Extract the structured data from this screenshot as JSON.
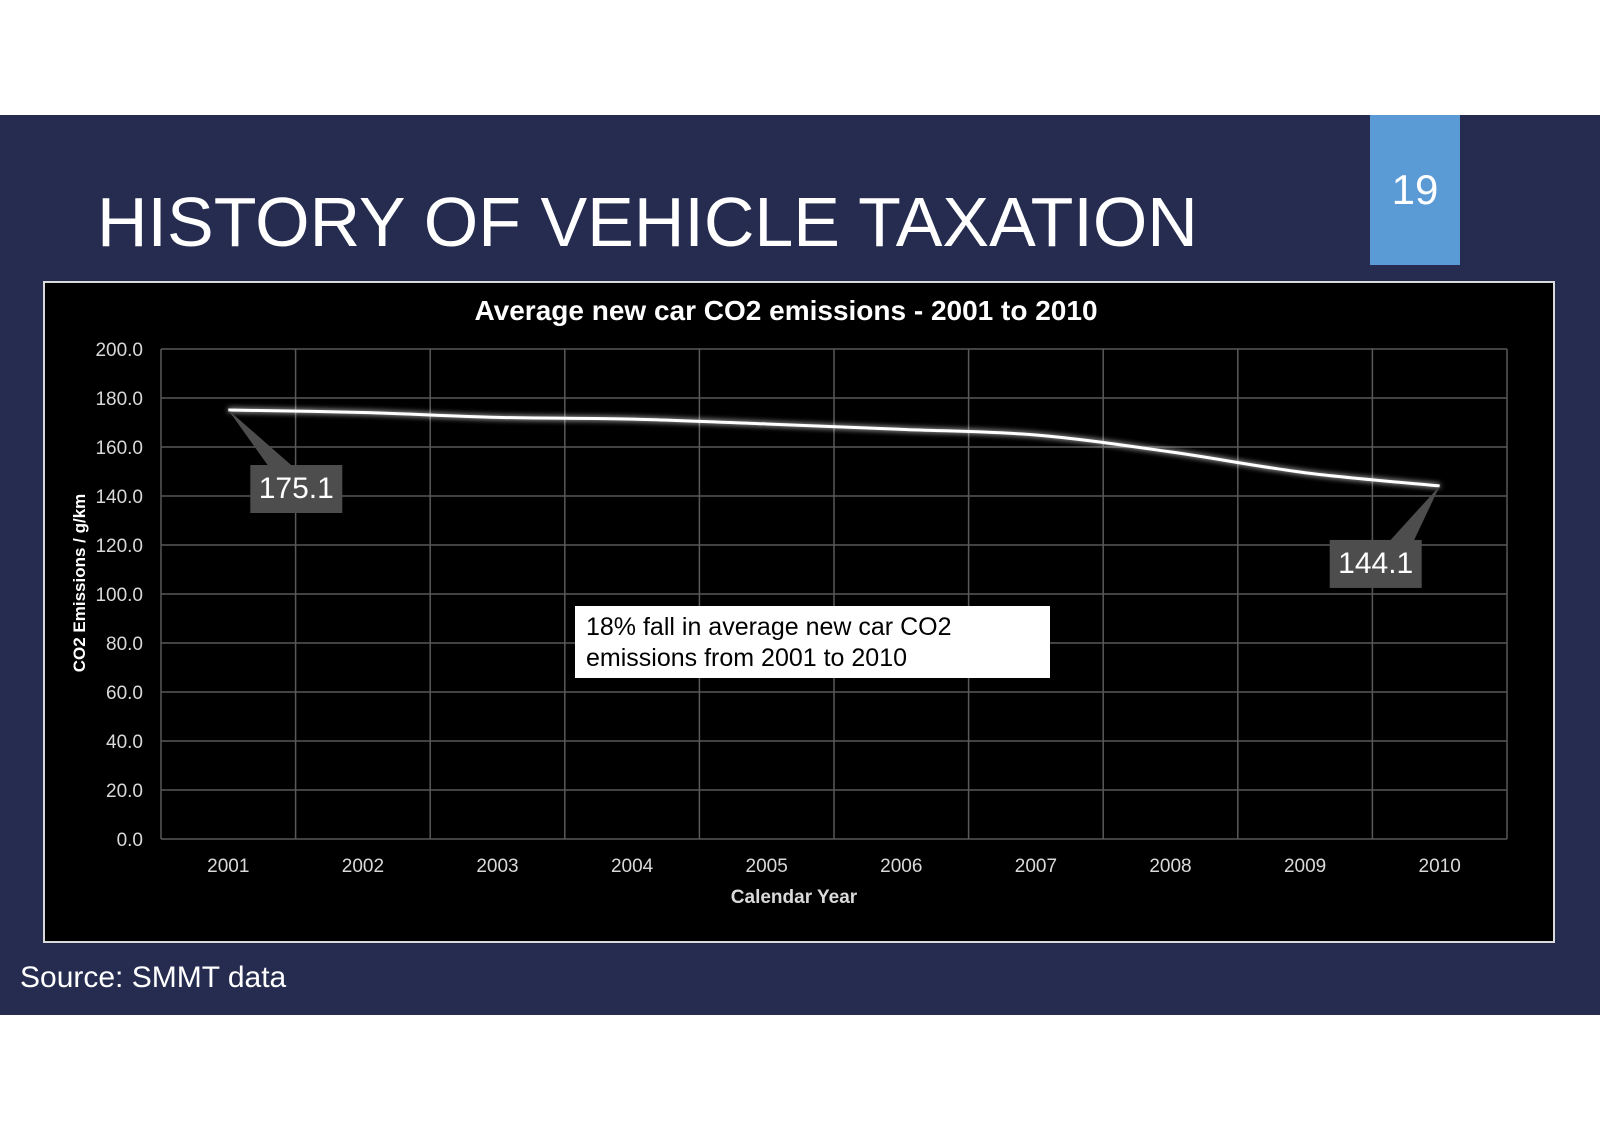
{
  "slide": {
    "title": "HISTORY OF VEHICLE TAXATION",
    "page_number": "19",
    "source": "Source: SMMT data"
  },
  "colors": {
    "background": "#252c4f",
    "accent": "#5b9bd5",
    "chart_background": "#000000",
    "line": "#ffffff",
    "grid": "#595959"
  },
  "chart_data": {
    "type": "line",
    "title": "Average new car CO2 emissions - 2001 to 2010",
    "xlabel": "Calendar Year",
    "ylabel": "CO2 Emissions / g/km",
    "categories": [
      "2001",
      "2002",
      "2003",
      "2004",
      "2005",
      "2006",
      "2007",
      "2008",
      "2009",
      "2010"
    ],
    "series": [
      {
        "values": [
          175.1,
          174.1,
          172.1,
          171.4,
          169.4,
          167.2,
          164.9,
          158.0,
          149.5,
          144.1
        ]
      }
    ],
    "y_ticks": [
      "0.0",
      "20.0",
      "40.0",
      "60.0",
      "80.0",
      "100.0",
      "120.0",
      "140.0",
      "160.0",
      "180.0",
      "200.0"
    ],
    "ylim": [
      0,
      200
    ],
    "grid": true,
    "callouts": [
      {
        "label": "175.1",
        "index": 0
      },
      {
        "label": "144.1",
        "index": 9
      }
    ],
    "annotation": {
      "line1": "18% fall in average new car CO2",
      "line2": "emissions from 2001 to 2010"
    }
  }
}
